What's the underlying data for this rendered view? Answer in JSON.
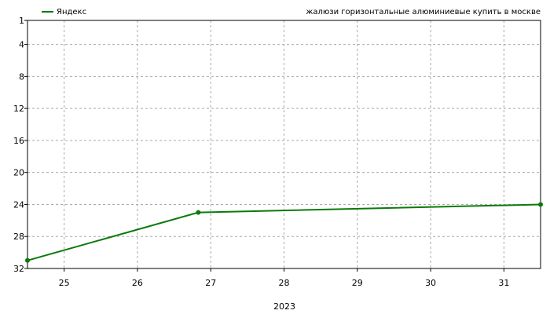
{
  "legend": {
    "label": "Яндекс"
  },
  "query": "жалюзи горизонтальные алюминиевые купить в москве",
  "colors": {
    "series": "#0a7a0a",
    "grid": "#aaaaaa",
    "axis": "#000000"
  },
  "chart_data": {
    "type": "line",
    "title": "",
    "xlabel": "2023",
    "ylabel": "",
    "x_ticks": [
      25,
      26,
      27,
      28,
      29,
      30,
      31
    ],
    "y_ticks": [
      1,
      4,
      8,
      12,
      16,
      20,
      24,
      28,
      32
    ],
    "xlim": [
      24.5,
      31.5
    ],
    "ylim": [
      1,
      32
    ],
    "y_inverted": true,
    "grid": true,
    "legend_position": "top-left",
    "series": [
      {
        "name": "Яндекс",
        "x": [
          24.5,
          26.83,
          31.5
        ],
        "y": [
          31,
          25,
          24
        ]
      }
    ]
  }
}
